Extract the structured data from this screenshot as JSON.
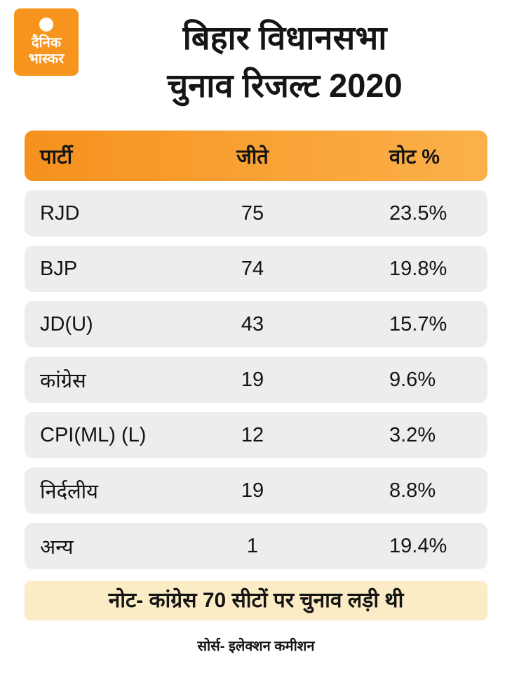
{
  "logo": {
    "line1": "दैनिक",
    "line2": "भास्कर"
  },
  "title": {
    "line1": "बिहार विधानसभा",
    "line2": "चुनाव रिजल्ट 2020"
  },
  "table": {
    "headers": [
      "पार्टी",
      "जीते",
      "वोट %"
    ],
    "rows": [
      {
        "party": "RJD",
        "won": "75",
        "vote_pct": "23.5%"
      },
      {
        "party": "BJP",
        "won": "74",
        "vote_pct": "19.8%"
      },
      {
        "party": "JD(U)",
        "won": "43",
        "vote_pct": "15.7%"
      },
      {
        "party": "कांग्रेस",
        "won": "19",
        "vote_pct": "9.6%"
      },
      {
        "party": "CPI(ML) (L)",
        "won": "12",
        "vote_pct": "3.2%"
      },
      {
        "party": "निर्दलीय",
        "won": "19",
        "vote_pct": "8.8%"
      },
      {
        "party": "अन्य",
        "won": "1",
        "vote_pct": "19.4%"
      }
    ]
  },
  "note": "नोट- कांग्रेस 70 सीटों पर चुनाव लड़ी थी",
  "source": "सोर्स- इलेक्शन कमीशन",
  "colors": {
    "header_gradient_start": "#F6911E",
    "header_gradient_end": "#FBB14A",
    "row_bg": "#EDEDED",
    "note_bg": "#FCECC6",
    "logo_bg": "#F7941D",
    "text": "#141414"
  },
  "chart_data": {
    "type": "table",
    "title": "बिहार विधानसभा चुनाव रिजल्ट 2020",
    "columns": [
      "पार्टी",
      "जीते",
      "वोट %"
    ],
    "rows": [
      [
        "RJD",
        75,
        "23.5%"
      ],
      [
        "BJP",
        74,
        "19.8%"
      ],
      [
        "JD(U)",
        43,
        "15.7%"
      ],
      [
        "कांग्रेस",
        19,
        "9.6%"
      ],
      [
        "CPI(ML) (L)",
        12,
        "3.2%"
      ],
      [
        "निर्दलीय",
        19,
        "8.8%"
      ],
      [
        "अन्य",
        1,
        "19.4%"
      ]
    ],
    "note": "नोट- कांग्रेस 70 सीटों पर चुनाव लड़ी थी",
    "source": "सोर्स- इलेक्शन कमीशन"
  }
}
